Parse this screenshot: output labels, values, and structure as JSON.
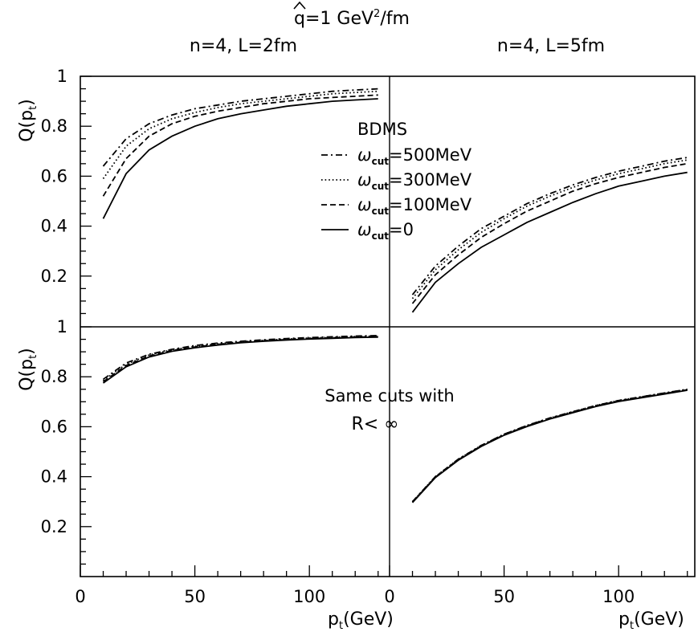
{
  "header": {
    "title_main": "q",
    "title_rest": "=1 GeV",
    "title_sup": "2",
    "title_unit": "/fm"
  },
  "chart_data": {
    "type": "line",
    "columns": [
      {
        "label": "n=4, L=2fm"
      },
      {
        "label": "n=4, L=5fm"
      }
    ],
    "xlabel": {
      "main": "p",
      "sub": "t",
      "rest": "(GeV)"
    },
    "ylabel": {
      "main": "Q(p",
      "sub": "t",
      "rest": ")"
    },
    "xlim": [
      0,
      135
    ],
    "x_ticks": [
      0,
      50,
      100
    ],
    "y_ticks_upper": [
      "0.2",
      "0.4",
      "0.6",
      "0.8",
      "1"
    ],
    "y_ticks_lower": [
      "0.2",
      "0.4",
      "0.6",
      "0.8",
      "1"
    ],
    "ylim_top": [
      0,
      1
    ],
    "ylim_bottom": [
      0,
      1
    ],
    "legend": {
      "title": "BDMS",
      "placement": "top-left panel, right side",
      "entries": [
        {
          "symbol": "ω",
          "sub": "cut",
          "value": "=500MeV",
          "style": "dashdot"
        },
        {
          "symbol": "ω",
          "sub": "cut",
          "value": "=300MeV",
          "style": "dotted"
        },
        {
          "symbol": "ω",
          "sub": "cut",
          "value": "=100MeV",
          "style": "dashed"
        },
        {
          "symbol": "ω",
          "sub": "cut",
          "value": "=0",
          "style": "solid"
        }
      ]
    },
    "annotation": {
      "line1": "Same cuts with",
      "line2": "R< ∞"
    },
    "x": [
      10,
      20,
      30,
      40,
      50,
      60,
      70,
      80,
      90,
      100,
      110,
      120,
      130
    ],
    "panels": [
      {
        "id": "top-left",
        "series": [
          {
            "style": "dashdot",
            "values": [
              0.64,
              0.75,
              0.81,
              0.845,
              0.87,
              0.885,
              0.9,
              0.91,
              0.92,
              0.93,
              0.94,
              0.945,
              0.95
            ]
          },
          {
            "style": "dotted",
            "values": [
              0.59,
              0.72,
              0.79,
              0.83,
              0.855,
              0.875,
              0.89,
              0.9,
              0.91,
              0.92,
              0.93,
              0.935,
              0.94
            ]
          },
          {
            "style": "dashed",
            "values": [
              0.52,
              0.67,
              0.76,
              0.81,
              0.84,
              0.86,
              0.875,
              0.89,
              0.9,
              0.91,
              0.915,
              0.92,
              0.925
            ]
          },
          {
            "style": "solid",
            "values": [
              0.43,
              0.61,
              0.705,
              0.76,
              0.8,
              0.83,
              0.85,
              0.865,
              0.88,
              0.89,
              0.9,
              0.905,
              0.91
            ]
          }
        ]
      },
      {
        "id": "top-right",
        "series": [
          {
            "style": "dashdot",
            "values": [
              0.125,
              0.24,
              0.32,
              0.39,
              0.44,
              0.49,
              0.53,
              0.565,
              0.595,
              0.62,
              0.64,
              0.66,
              0.675
            ]
          },
          {
            "style": "dotted",
            "values": [
              0.11,
              0.225,
              0.305,
              0.375,
              0.43,
              0.48,
              0.52,
              0.555,
              0.585,
              0.61,
              0.63,
              0.65,
              0.665
            ]
          },
          {
            "style": "dashed",
            "values": [
              0.09,
              0.205,
              0.285,
              0.355,
              0.41,
              0.46,
              0.5,
              0.54,
              0.57,
              0.595,
              0.615,
              0.635,
              0.65
            ]
          },
          {
            "style": "solid",
            "values": [
              0.055,
              0.175,
              0.25,
              0.315,
              0.365,
              0.415,
              0.455,
              0.495,
              0.53,
              0.56,
              0.58,
              0.6,
              0.615
            ]
          }
        ]
      },
      {
        "id": "bottom-left",
        "series": [
          {
            "style": "dashdot",
            "values": [
              0.79,
              0.855,
              0.89,
              0.91,
              0.925,
              0.935,
              0.942,
              0.948,
              0.953,
              0.957,
              0.96,
              0.963,
              0.965
            ]
          },
          {
            "style": "dotted",
            "values": [
              0.785,
              0.85,
              0.887,
              0.908,
              0.922,
              0.932,
              0.94,
              0.946,
              0.951,
              0.955,
              0.958,
              0.961,
              0.963
            ]
          },
          {
            "style": "dashed",
            "values": [
              0.78,
              0.845,
              0.883,
              0.905,
              0.919,
              0.93,
              0.938,
              0.944,
              0.949,
              0.953,
              0.956,
              0.959,
              0.961
            ]
          },
          {
            "style": "solid",
            "values": [
              0.775,
              0.84,
              0.879,
              0.902,
              0.916,
              0.927,
              0.936,
              0.942,
              0.947,
              0.951,
              0.954,
              0.957,
              0.959
            ]
          }
        ]
      },
      {
        "id": "bottom-right",
        "series": [
          {
            "style": "dashdot",
            "values": [
              0.3,
              0.4,
              0.47,
              0.525,
              0.57,
              0.605,
              0.635,
              0.66,
              0.685,
              0.705,
              0.72,
              0.735,
              0.75
            ]
          },
          {
            "style": "dotted",
            "values": [
              0.3,
              0.4,
              0.47,
              0.525,
              0.57,
              0.605,
              0.635,
              0.66,
              0.685,
              0.705,
              0.72,
              0.735,
              0.75
            ]
          },
          {
            "style": "dashed",
            "values": [
              0.298,
              0.398,
              0.468,
              0.523,
              0.568,
              0.603,
              0.633,
              0.658,
              0.683,
              0.703,
              0.718,
              0.733,
              0.748
            ]
          },
          {
            "style": "solid",
            "values": [
              0.296,
              0.396,
              0.466,
              0.521,
              0.566,
              0.601,
              0.631,
              0.656,
              0.681,
              0.701,
              0.716,
              0.731,
              0.746
            ]
          }
        ]
      }
    ]
  }
}
